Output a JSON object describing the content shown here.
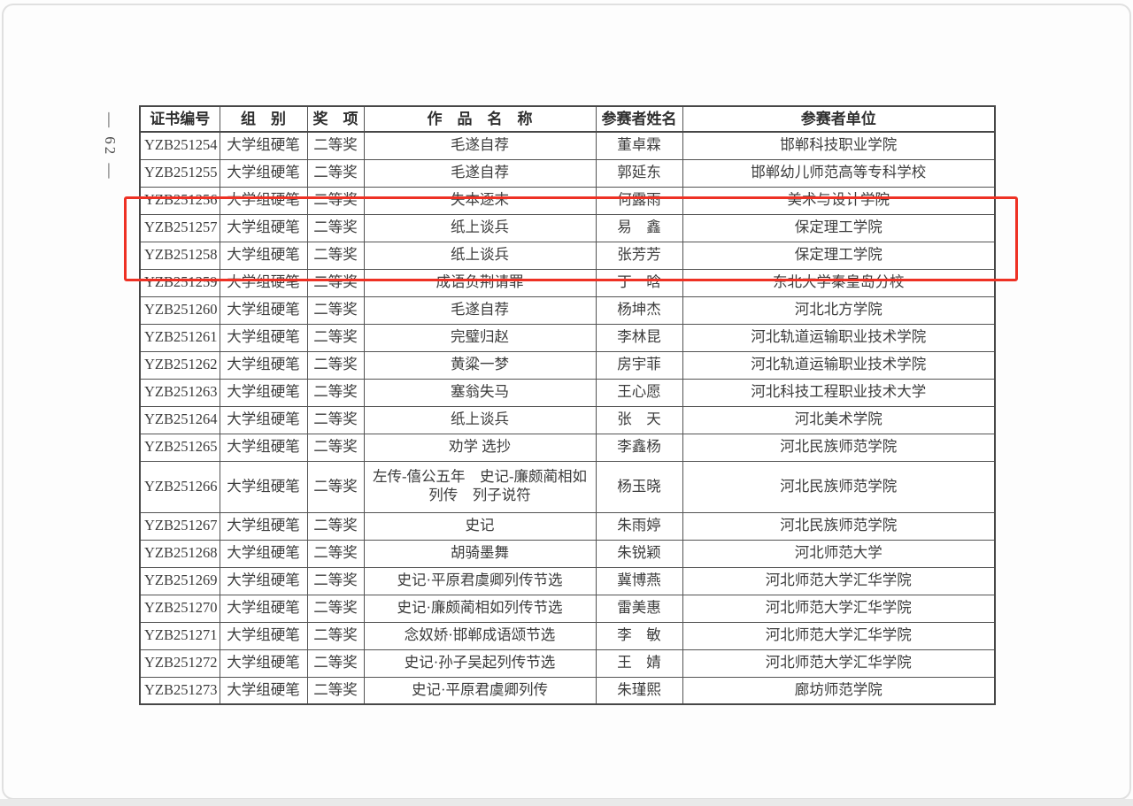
{
  "page": {
    "page_number": "— 62 —"
  },
  "highlight": {
    "color": "#ee3124"
  },
  "table": {
    "headers": [
      "证书编号",
      "组　别",
      "奖　项",
      "作　品　名　称",
      "参赛者姓名",
      "参赛者单位"
    ],
    "rows": [
      {
        "id": "YZB251254",
        "group": "大学组硬笔",
        "award": "二等奖",
        "work": "毛遂自荐",
        "name": "董卓霖",
        "unit": "邯郸科技职业学院"
      },
      {
        "id": "YZB251255",
        "group": "大学组硬笔",
        "award": "二等奖",
        "work": "毛遂自荐",
        "name": "郭延东",
        "unit": "邯郸幼儿师范高等专科学校"
      },
      {
        "id": "YZB251256",
        "group": "大学组硬笔",
        "award": "二等奖",
        "work": "失本逐末",
        "name": "何露雨",
        "unit": "美术与设计学院"
      },
      {
        "id": "YZB251257",
        "group": "大学组硬笔",
        "award": "二等奖",
        "work": "纸上谈兵",
        "name": "易　鑫",
        "unit": "保定理工学院"
      },
      {
        "id": "YZB251258",
        "group": "大学组硬笔",
        "award": "二等奖",
        "work": "纸上谈兵",
        "name": "张芳芳",
        "unit": "保定理工学院"
      },
      {
        "id": "YZB251259",
        "group": "大学组硬笔",
        "award": "二等奖",
        "work": "成语负荆请罪",
        "name": "丁　晗",
        "unit": "东北大学秦皇岛分校"
      },
      {
        "id": "YZB251260",
        "group": "大学组硬笔",
        "award": "二等奖",
        "work": "毛遂自荐",
        "name": "杨坤杰",
        "unit": "河北北方学院"
      },
      {
        "id": "YZB251261",
        "group": "大学组硬笔",
        "award": "二等奖",
        "work": "完璧归赵",
        "name": "李林昆",
        "unit": "河北轨道运输职业技术学院"
      },
      {
        "id": "YZB251262",
        "group": "大学组硬笔",
        "award": "二等奖",
        "work": "黄粱一梦",
        "name": "房宇菲",
        "unit": "河北轨道运输职业技术学院"
      },
      {
        "id": "YZB251263",
        "group": "大学组硬笔",
        "award": "二等奖",
        "work": "塞翁失马",
        "name": "王心愿",
        "unit": "河北科技工程职业技术大学"
      },
      {
        "id": "YZB251264",
        "group": "大学组硬笔",
        "award": "二等奖",
        "work": "纸上谈兵",
        "name": "张　天",
        "unit": "河北美术学院"
      },
      {
        "id": "YZB251265",
        "group": "大学组硬笔",
        "award": "二等奖",
        "work": "劝学 选抄",
        "name": "李鑫杨",
        "unit": "河北民族师范学院"
      },
      {
        "id": "YZB251266",
        "group": "大学组硬笔",
        "award": "二等奖",
        "work": "左传-僖公五年　史记-廉颇蔺相如列传　列子说符",
        "name": "杨玉晓",
        "unit": "河北民族师范学院",
        "tall": true
      },
      {
        "id": "YZB251267",
        "group": "大学组硬笔",
        "award": "二等奖",
        "work": "史记",
        "name": "朱雨婷",
        "unit": "河北民族师范学院"
      },
      {
        "id": "YZB251268",
        "group": "大学组硬笔",
        "award": "二等奖",
        "work": "胡骑墨舞",
        "name": "朱锐颖",
        "unit": "河北师范大学"
      },
      {
        "id": "YZB251269",
        "group": "大学组硬笔",
        "award": "二等奖",
        "work": "史记·平原君虞卿列传节选",
        "name": "冀博燕",
        "unit": "河北师范大学汇华学院"
      },
      {
        "id": "YZB251270",
        "group": "大学组硬笔",
        "award": "二等奖",
        "work": "史记·廉颇蔺相如列传节选",
        "name": "雷美惠",
        "unit": "河北师范大学汇华学院"
      },
      {
        "id": "YZB251271",
        "group": "大学组硬笔",
        "award": "二等奖",
        "work": "念奴娇·邯郸成语颂节选",
        "name": "李　敏",
        "unit": "河北师范大学汇华学院"
      },
      {
        "id": "YZB251272",
        "group": "大学组硬笔",
        "award": "二等奖",
        "work": "史记·孙子吴起列传节选",
        "name": "王　婧",
        "unit": "河北师范大学汇华学院"
      },
      {
        "id": "YZB251273",
        "group": "大学组硬笔",
        "award": "二等奖",
        "work": "史记·平原君虞卿列传",
        "name": "朱瑾熙",
        "unit": "廊坊师范学院"
      }
    ]
  }
}
